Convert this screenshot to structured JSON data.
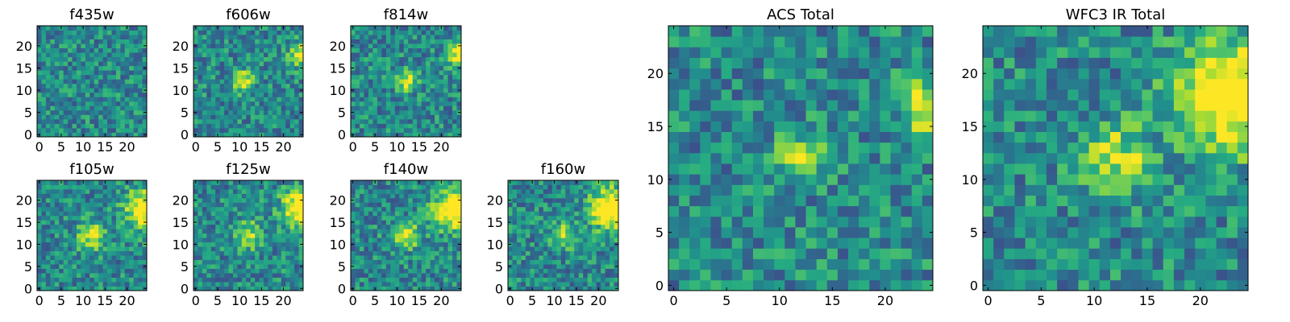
{
  "chart_data": [
    {
      "type": "heatmap",
      "title": "f435w",
      "xlim": [
        0,
        24
      ],
      "ylim": [
        0,
        24
      ],
      "xticks": [
        "0",
        "5",
        "10",
        "15",
        "20"
      ],
      "yticks": [
        "0",
        "5",
        "10",
        "15",
        "20"
      ],
      "seed": 435,
      "colormap": "viridis",
      "blobs": []
    },
    {
      "type": "heatmap",
      "title": "f606w",
      "xlim": [
        0,
        24
      ],
      "ylim": [
        0,
        24
      ],
      "xticks": [
        "0",
        "5",
        "10",
        "15",
        "20"
      ],
      "yticks": [
        "0",
        "5",
        "10",
        "15",
        "20"
      ],
      "seed": 606,
      "colormap": "viridis",
      "blobs": [
        {
          "x": 11,
          "y": 12,
          "amp": 0.55,
          "sigma": 1.6
        },
        {
          "x": 24,
          "y": 18,
          "amp": 0.5,
          "sigma": 2.0
        }
      ]
    },
    {
      "type": "heatmap",
      "title": "f814w",
      "xlim": [
        0,
        24
      ],
      "ylim": [
        0,
        24
      ],
      "xticks": [
        "0",
        "5",
        "10",
        "15",
        "20"
      ],
      "yticks": [
        "0",
        "5",
        "10",
        "15",
        "20"
      ],
      "seed": 814,
      "colormap": "viridis",
      "blobs": [
        {
          "x": 12,
          "y": 12,
          "amp": 0.55,
          "sigma": 1.6
        },
        {
          "x": 24,
          "y": 18,
          "amp": 0.55,
          "sigma": 2.0
        }
      ]
    },
    {
      "type": "heatmap",
      "title": "f105w",
      "xlim": [
        0,
        24
      ],
      "ylim": [
        0,
        24
      ],
      "xticks": [
        "0",
        "5",
        "10",
        "15",
        "20"
      ],
      "yticks": [
        "0",
        "5",
        "10",
        "15",
        "20"
      ],
      "seed": 105,
      "colormap": "viridis",
      "blobs": [
        {
          "x": 12,
          "y": 12,
          "amp": 0.5,
          "sigma": 2.2
        },
        {
          "x": 24,
          "y": 18,
          "amp": 0.7,
          "sigma": 3.0
        }
      ]
    },
    {
      "type": "heatmap",
      "title": "f125w",
      "xlim": [
        0,
        24
      ],
      "ylim": [
        0,
        24
      ],
      "xticks": [
        "0",
        "5",
        "10",
        "15",
        "20"
      ],
      "yticks": [
        "0",
        "5",
        "10",
        "15",
        "20"
      ],
      "seed": 125,
      "colormap": "viridis",
      "blobs": [
        {
          "x": 12,
          "y": 12,
          "amp": 0.45,
          "sigma": 2.2
        },
        {
          "x": 24,
          "y": 18,
          "amp": 0.7,
          "sigma": 3.0
        }
      ]
    },
    {
      "type": "heatmap",
      "title": "f140w",
      "xlim": [
        0,
        24
      ],
      "ylim": [
        0,
        24
      ],
      "xticks": [
        "0",
        "5",
        "10",
        "15",
        "20"
      ],
      "yticks": [
        "0",
        "5",
        "10",
        "15",
        "20"
      ],
      "seed": 140,
      "colormap": "viridis",
      "blobs": [
        {
          "x": 12,
          "y": 12,
          "amp": 0.45,
          "sigma": 2.2
        },
        {
          "x": 23,
          "y": 18,
          "amp": 0.75,
          "sigma": 3.2
        }
      ]
    },
    {
      "type": "heatmap",
      "title": "f160w",
      "xlim": [
        0,
        24
      ],
      "ylim": [
        0,
        24
      ],
      "xticks": [
        "0",
        "5",
        "10",
        "15",
        "20"
      ],
      "yticks": [
        "0",
        "5",
        "10",
        "15",
        "20"
      ],
      "seed": 160,
      "colormap": "viridis",
      "blobs": [
        {
          "x": 12,
          "y": 12,
          "amp": 0.45,
          "sigma": 2.0
        },
        {
          "x": 23,
          "y": 18,
          "amp": 0.8,
          "sigma": 3.2
        }
      ]
    },
    {
      "type": "heatmap",
      "title": "ACS Total",
      "xlim": [
        0,
        24
      ],
      "ylim": [
        0,
        24
      ],
      "xticks": [
        "0",
        "5",
        "10",
        "15",
        "20"
      ],
      "yticks": [
        "0",
        "5",
        "10",
        "15",
        "20"
      ],
      "seed": 2001,
      "colormap": "viridis",
      "blobs": [
        {
          "x": 12,
          "y": 12,
          "amp": 0.55,
          "sigma": 1.5
        },
        {
          "x": 24,
          "y": 17,
          "amp": 0.55,
          "sigma": 1.8
        }
      ]
    },
    {
      "type": "heatmap",
      "title": "WFC3 IR Total",
      "xlim": [
        0,
        24
      ],
      "ylim": [
        0,
        24
      ],
      "xticks": [
        "0",
        "5",
        "10",
        "15",
        "20"
      ],
      "yticks": [
        "0",
        "5",
        "10",
        "15",
        "20"
      ],
      "seed": 3001,
      "colormap": "viridis",
      "blobs": [
        {
          "x": 12,
          "y": 12,
          "amp": 0.45,
          "sigma": 2.2
        },
        {
          "x": 23,
          "y": 18,
          "amp": 0.8,
          "sigma": 3.5
        }
      ]
    }
  ]
}
